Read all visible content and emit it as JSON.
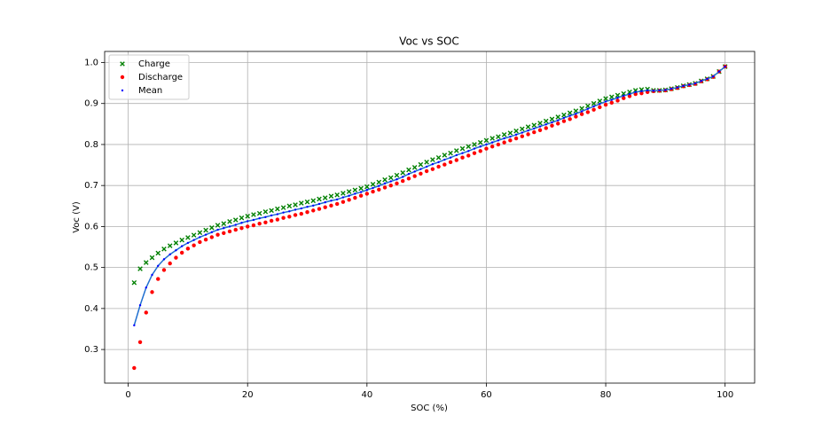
{
  "chart_data": {
    "type": "scatter",
    "title": "Voc vs SOC",
    "x_label": "SOC (%)",
    "y_label": "Voc (V)",
    "x": [
      1,
      2,
      3,
      4,
      5,
      6,
      7,
      8,
      9,
      10,
      11,
      12,
      13,
      14,
      15,
      16,
      17,
      18,
      19,
      20,
      21,
      22,
      23,
      24,
      25,
      26,
      27,
      28,
      29,
      30,
      31,
      32,
      33,
      34,
      35,
      36,
      37,
      38,
      39,
      40,
      41,
      42,
      43,
      44,
      45,
      46,
      47,
      48,
      49,
      50,
      51,
      52,
      53,
      54,
      55,
      56,
      57,
      58,
      59,
      60,
      61,
      62,
      63,
      64,
      65,
      66,
      67,
      68,
      69,
      70,
      71,
      72,
      73,
      74,
      75,
      76,
      77,
      78,
      79,
      80,
      81,
      82,
      83,
      84,
      85,
      86,
      87,
      88,
      89,
      90,
      91,
      92,
      93,
      94,
      95,
      96,
      97,
      98,
      99,
      100
    ],
    "series": [
      {
        "name": "Charge",
        "color": "green",
        "marker": "x",
        "values": [
          0.463,
          0.497,
          0.512,
          0.524,
          0.535,
          0.545,
          0.553,
          0.56,
          0.567,
          0.573,
          0.579,
          0.585,
          0.591,
          0.597,
          0.603,
          0.607,
          0.612,
          0.616,
          0.621,
          0.625,
          0.629,
          0.632,
          0.636,
          0.639,
          0.643,
          0.646,
          0.65,
          0.653,
          0.657,
          0.66,
          0.663,
          0.667,
          0.67,
          0.674,
          0.677,
          0.681,
          0.685,
          0.689,
          0.693,
          0.697,
          0.703,
          0.708,
          0.714,
          0.719,
          0.725,
          0.731,
          0.738,
          0.744,
          0.751,
          0.757,
          0.763,
          0.768,
          0.774,
          0.779,
          0.785,
          0.79,
          0.795,
          0.8,
          0.805,
          0.81,
          0.815,
          0.819,
          0.824,
          0.828,
          0.833,
          0.838,
          0.843,
          0.847,
          0.852,
          0.857,
          0.862,
          0.867,
          0.872,
          0.877,
          0.882,
          0.888,
          0.894,
          0.9,
          0.906,
          0.912,
          0.916,
          0.92,
          0.924,
          0.928,
          0.932,
          0.934,
          0.935,
          0.932,
          0.932,
          0.933,
          0.936,
          0.939,
          0.943,
          0.946,
          0.949,
          0.955,
          0.96,
          0.966,
          0.978,
          0.99
        ]
      },
      {
        "name": "Discharge",
        "color": "red",
        "marker": "o",
        "values": [
          0.255,
          0.318,
          0.39,
          0.44,
          0.472,
          0.494,
          0.51,
          0.524,
          0.536,
          0.546,
          0.554,
          0.562,
          0.568,
          0.574,
          0.58,
          0.584,
          0.588,
          0.592,
          0.596,
          0.6,
          0.603,
          0.607,
          0.61,
          0.614,
          0.617,
          0.621,
          0.624,
          0.628,
          0.631,
          0.635,
          0.639,
          0.643,
          0.647,
          0.651,
          0.655,
          0.66,
          0.665,
          0.67,
          0.675,
          0.68,
          0.685,
          0.69,
          0.695,
          0.7,
          0.705,
          0.711,
          0.717,
          0.723,
          0.729,
          0.735,
          0.74,
          0.746,
          0.751,
          0.757,
          0.762,
          0.768,
          0.773,
          0.779,
          0.784,
          0.79,
          0.795,
          0.8,
          0.805,
          0.81,
          0.815,
          0.82,
          0.825,
          0.83,
          0.835,
          0.84,
          0.846,
          0.851,
          0.857,
          0.862,
          0.868,
          0.874,
          0.879,
          0.885,
          0.891,
          0.897,
          0.902,
          0.907,
          0.913,
          0.918,
          0.923,
          0.925,
          0.928,
          0.93,
          0.931,
          0.932,
          0.935,
          0.938,
          0.942,
          0.945,
          0.948,
          0.954,
          0.959,
          0.965,
          0.978,
          0.99
        ]
      },
      {
        "name": "Mean",
        "color": "blue",
        "marker": "dot",
        "line_color": "#1f6fd0",
        "values": [
          0.359,
          0.408,
          0.451,
          0.482,
          0.504,
          0.52,
          0.532,
          0.542,
          0.552,
          0.56,
          0.567,
          0.574,
          0.58,
          0.586,
          0.592,
          0.596,
          0.6,
          0.604,
          0.609,
          0.613,
          0.616,
          0.62,
          0.623,
          0.627,
          0.63,
          0.634,
          0.637,
          0.641,
          0.644,
          0.648,
          0.651,
          0.655,
          0.659,
          0.663,
          0.666,
          0.671,
          0.675,
          0.68,
          0.684,
          0.689,
          0.694,
          0.699,
          0.705,
          0.71,
          0.715,
          0.721,
          0.728,
          0.734,
          0.74,
          0.746,
          0.752,
          0.757,
          0.763,
          0.768,
          0.774,
          0.779,
          0.784,
          0.79,
          0.795,
          0.8,
          0.805,
          0.81,
          0.815,
          0.819,
          0.824,
          0.829,
          0.834,
          0.839,
          0.844,
          0.849,
          0.854,
          0.859,
          0.865,
          0.87,
          0.875,
          0.881,
          0.887,
          0.893,
          0.899,
          0.905,
          0.909,
          0.914,
          0.919,
          0.923,
          0.928,
          0.93,
          0.932,
          0.931,
          0.932,
          0.933,
          0.936,
          0.939,
          0.943,
          0.946,
          0.949,
          0.955,
          0.96,
          0.966,
          0.978,
          0.99
        ]
      }
    ],
    "xlim": [
      -3.95,
      104.95
    ],
    "ylim": [
      0.218,
      1.027
    ],
    "xticks": [
      0,
      20,
      40,
      60,
      80,
      100
    ],
    "yticks": [
      0.3,
      0.4,
      0.5,
      0.6,
      0.7,
      0.8,
      0.9,
      {
        "value": 1,
        "label": "1.0"
      }
    ],
    "grid": true,
    "legend": "upper left"
  }
}
